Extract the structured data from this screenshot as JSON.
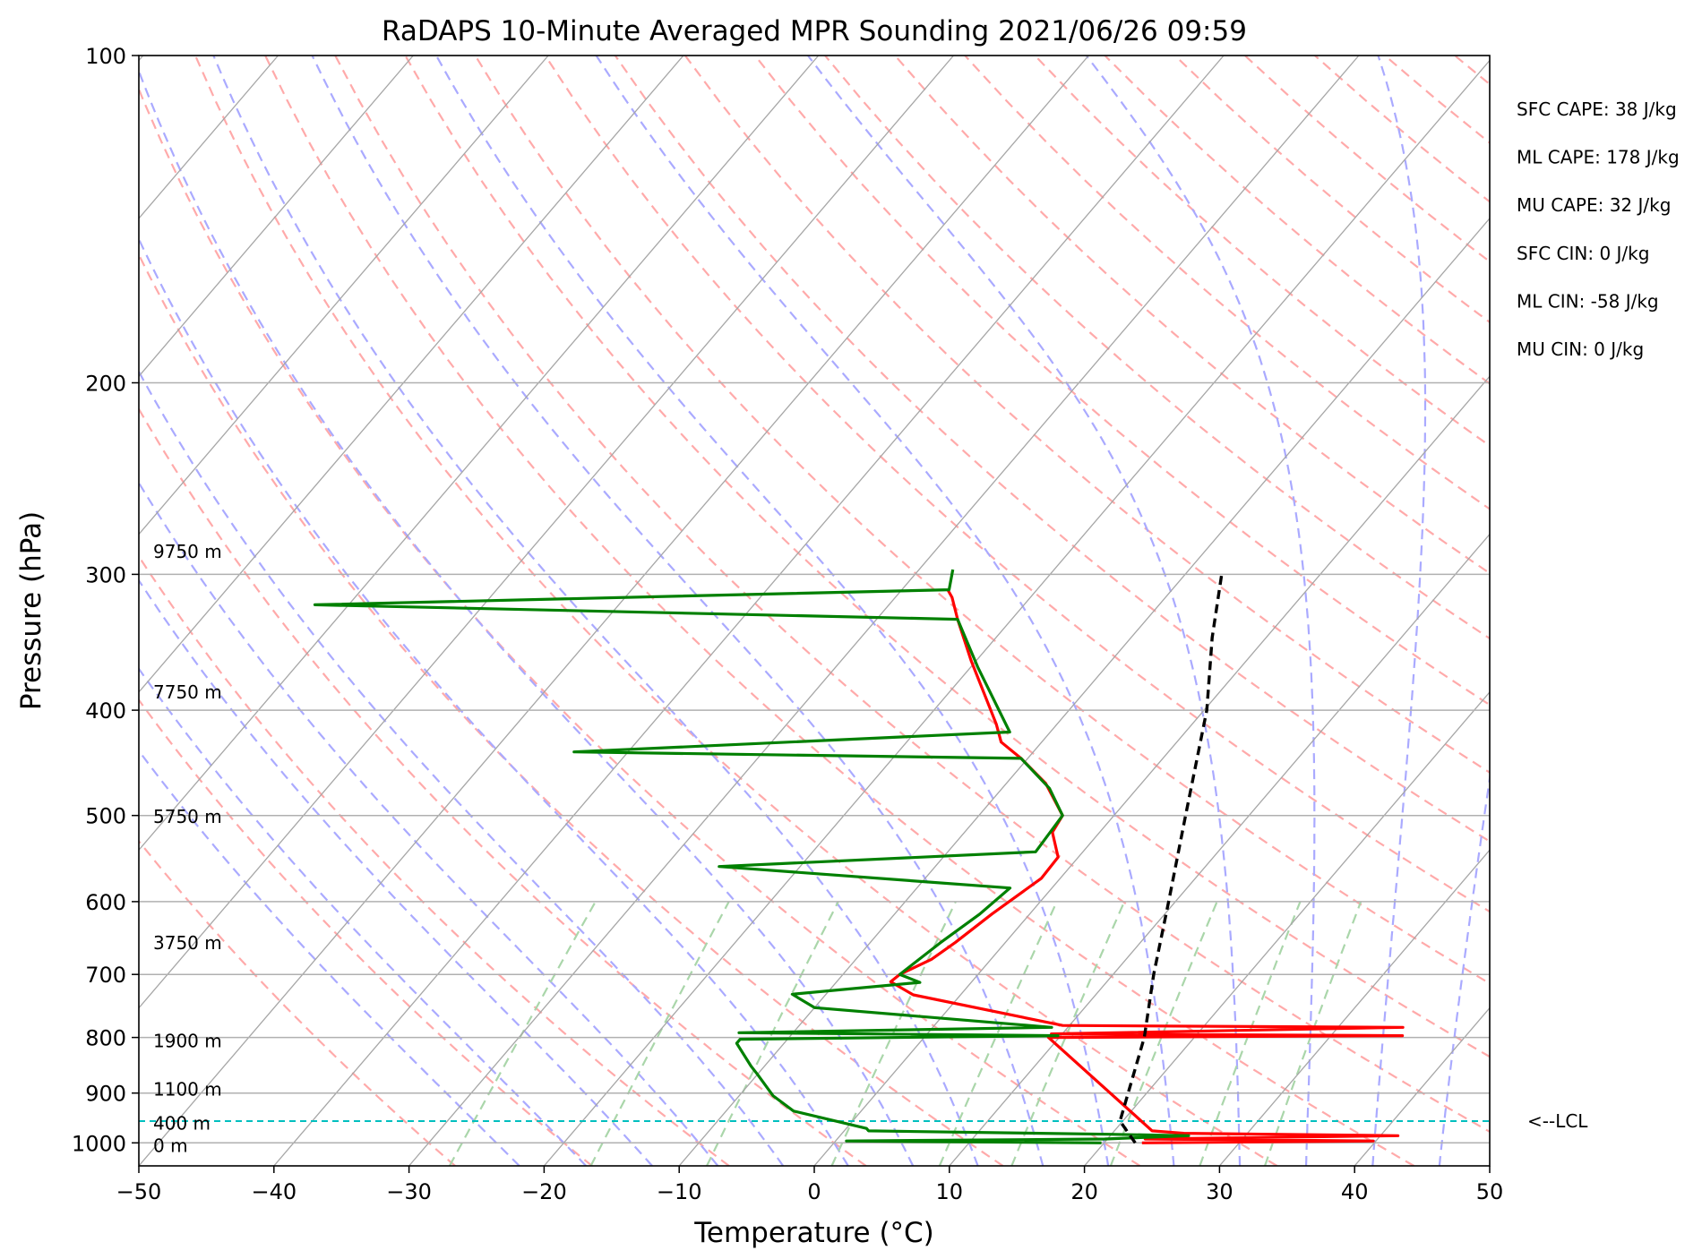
{
  "chart_data": {
    "type": "line",
    "title": "RaDAPS 10-Minute Averaged MPR Sounding 2021/06/26 09:59",
    "xlabel": "Temperature (°C)",
    "ylabel": "Pressure (hPa)",
    "xlim": [
      -50,
      50
    ],
    "ylim": [
      1050,
      100
    ],
    "y_scale": "log",
    "x_ticks": [
      -50,
      -40,
      -30,
      -20,
      -10,
      0,
      10,
      20,
      30,
      40,
      50
    ],
    "x_tick_labels": [
      "−50",
      "−40",
      "−30",
      "−20",
      "−10",
      "0",
      "10",
      "20",
      "30",
      "40",
      "50"
    ],
    "y_ticks": [
      100,
      200,
      300,
      400,
      500,
      600,
      700,
      800,
      900,
      1000
    ],
    "y_tick_labels": [
      "100",
      "200",
      "300",
      "400",
      "500",
      "600",
      "700",
      "800",
      "900",
      "1000"
    ],
    "skew_background": "skew-T",
    "grid": true,
    "colors": {
      "temperature": "#ff0000",
      "dewpoint": "#008000",
      "parcel": "#000000",
      "lcl": "#00bfbf",
      "isotherm": "#a6a6a6",
      "dry_adiabat": "#ffaaaa",
      "moist_adiabat": "#aaaaff",
      "mixing_ratio": "#aad6aa"
    },
    "series": [
      {
        "key": "temperature",
        "points": [
          [
            22.8,
            1000
          ],
          [
            39.8,
            996
          ],
          [
            22.8,
            992
          ],
          [
            41.3,
            985
          ],
          [
            25.3,
            980
          ],
          [
            22.8,
            975
          ],
          [
            9.2,
            800
          ],
          [
            35.3,
            797
          ],
          [
            9.2,
            794
          ],
          [
            34.8,
            783
          ],
          [
            9.5,
            780
          ],
          [
            -3.5,
            731
          ],
          [
            -6.0,
            711
          ],
          [
            -5.8,
            700
          ],
          [
            -4.4,
            678
          ],
          [
            -3.7,
            654
          ],
          [
            -2.8,
            616
          ],
          [
            -1.4,
            571
          ],
          [
            -1.5,
            546
          ],
          [
            -3.5,
            518
          ],
          [
            -3.8,
            500
          ],
          [
            -7.1,
            467
          ],
          [
            -10.5,
            443
          ],
          [
            -13.0,
            428
          ],
          [
            -14.5,
            412
          ],
          [
            -20.4,
            360
          ],
          [
            -24.0,
            330
          ],
          [
            -25.8,
            315
          ],
          [
            -26.6,
            310
          ]
        ]
      },
      {
        "key": "dewpoint",
        "points": [
          [
            19.8,
            1000
          ],
          [
            0.8,
            996
          ],
          [
            19.8,
            992
          ],
          [
            25.8,
            985
          ],
          [
            19.8,
            982
          ],
          [
            1.8,
            975
          ],
          [
            1.5,
            970
          ],
          [
            -5.0,
            935
          ],
          [
            -7.5,
            905
          ],
          [
            -10.0,
            865
          ],
          [
            -11.0,
            850
          ],
          [
            -13.5,
            810
          ],
          [
            -13.5,
            803
          ],
          [
            9.8,
            797
          ],
          [
            -14.0,
            792
          ],
          [
            8.8,
            783
          ],
          [
            -10.0,
            751
          ],
          [
            -12.5,
            730
          ],
          [
            -3.8,
            712
          ],
          [
            -5.8,
            700
          ],
          [
            -4.8,
            655
          ],
          [
            -3.7,
            616
          ],
          [
            -3.1,
            583
          ],
          [
            -26.0,
            557
          ],
          [
            -3.5,
            540
          ],
          [
            -3.8,
            500
          ],
          [
            -6.5,
            472
          ],
          [
            -10.5,
            443
          ],
          [
            -44.0,
            437
          ],
          [
            -13.0,
            419
          ],
          [
            -19.5,
            365
          ],
          [
            -24.0,
            330
          ],
          [
            -72.5,
            320
          ],
          [
            -26.5,
            310
          ],
          [
            -27.5,
            297
          ]
        ]
      },
      {
        "key": "parcel",
        "points": [
          [
            22.3,
            1000
          ],
          [
            19.8,
            955
          ],
          [
            16.3,
            800
          ],
          [
            13.0,
            700
          ],
          [
            9.5,
            600
          ],
          [
            5.3,
            500
          ],
          [
            0.2,
            400
          ],
          [
            -4.0,
            343
          ],
          [
            -7.3,
            300
          ]
        ]
      }
    ],
    "lcl": {
      "pressure": 955,
      "label": "<--LCL"
    },
    "height_labels": [
      {
        "text": "9750 m",
        "pressure": 286
      },
      {
        "text": "7750 m",
        "pressure": 385
      },
      {
        "text": "5750 m",
        "pressure": 501
      },
      {
        "text": "3750 m",
        "pressure": 655
      },
      {
        "text": "1900 m",
        "pressure": 806
      },
      {
        "text": "1100 m",
        "pressure": 893
      },
      {
        "text": "400 m",
        "pressure": 960
      },
      {
        "text": "0 m",
        "pressure": 1006
      }
    ],
    "stats": [
      "SFC CAPE: 38 J/kg",
      "ML CAPE: 178 J/kg",
      "MU CAPE: 32 J/kg",
      "SFC CIN: 0 J/kg",
      "ML CIN: -58 J/kg",
      "MU CIN: 0 J/kg"
    ]
  }
}
